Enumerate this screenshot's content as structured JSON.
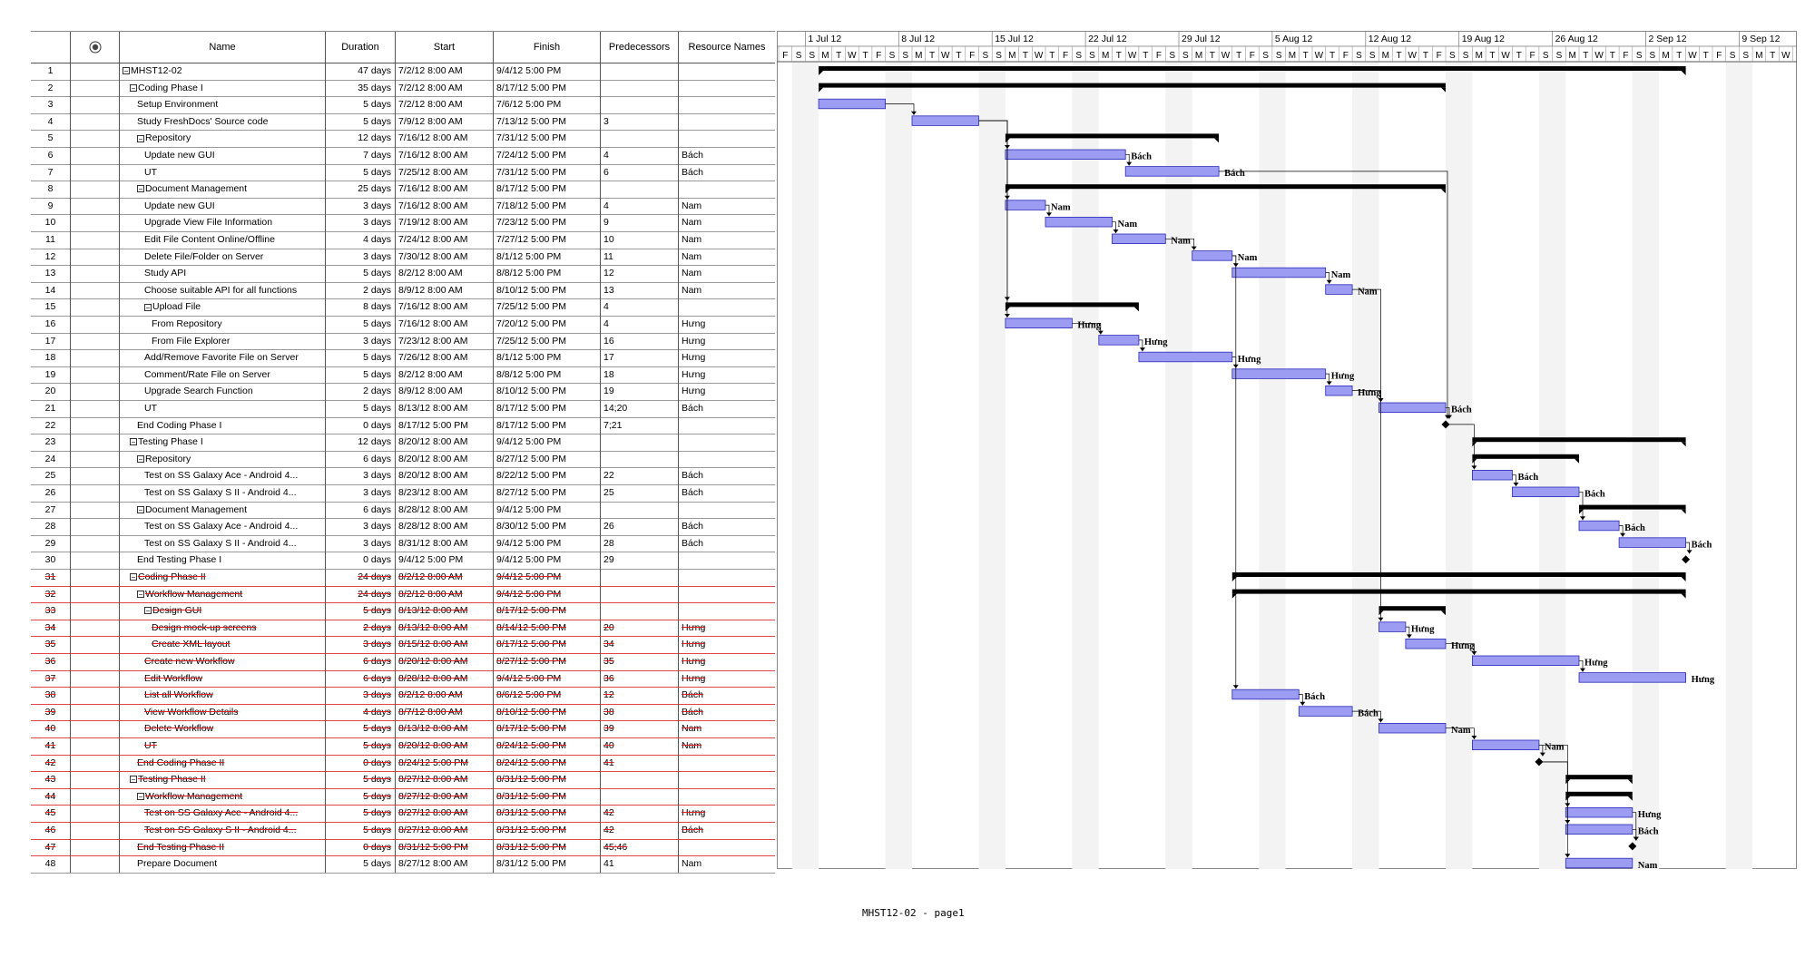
{
  "columns": {
    "info_icon": "info-icon",
    "name": "Name",
    "duration": "Duration",
    "start": "Start",
    "finish": "Finish",
    "predecessors": "Predecessors",
    "resource_names": "Resource Names"
  },
  "timeline": {
    "weeks": [
      "1 Jul 12",
      "8 Jul 12",
      "15 Jul 12",
      "22 Jul 12",
      "29 Jul 12",
      "5 Aug 12",
      "12 Aug 12",
      "19 Aug 12",
      "26 Aug 12",
      "2 Sep 12",
      "9 Sep 12"
    ],
    "lead_day_letters": [
      "F",
      "S"
    ],
    "day_letters": [
      "S",
      "M",
      "T",
      "W",
      "T",
      "F",
      "S"
    ]
  },
  "tasks": [
    {
      "id": "1",
      "name": "MHST12-02",
      "level": 0,
      "summary": true,
      "duration": "47  days",
      "start": "7/2/12 8:00 AM",
      "finish": "9/4/12 5:00 PM",
      "pred": "",
      "res": "",
      "struck": false
    },
    {
      "id": "2",
      "name": "Coding Phase I",
      "level": 1,
      "summary": true,
      "duration": "35  days",
      "start": "7/2/12 8:00 AM",
      "finish": "8/17/12 5:00 PM",
      "pred": "",
      "res": "",
      "struck": false
    },
    {
      "id": "3",
      "name": "Setup Environment",
      "level": 2,
      "summary": false,
      "duration": "5 days",
      "start": "7/2/12 8:00 AM",
      "finish": "7/6/12 5:00 PM",
      "pred": "",
      "res": "",
      "struck": false
    },
    {
      "id": "4",
      "name": "Study FreshDocs' Source code",
      "level": 2,
      "summary": false,
      "duration": "5 days",
      "start": "7/9/12 8:00 AM",
      "finish": "7/13/12 5:00 PM",
      "pred": "3",
      "res": "",
      "struck": false
    },
    {
      "id": "5",
      "name": "Repository",
      "level": 2,
      "summary": true,
      "duration": "12  days",
      "start": "7/16/12 8:00 AM",
      "finish": "7/31/12 5:00 PM",
      "pred": "",
      "res": "",
      "struck": false
    },
    {
      "id": "6",
      "name": "Update new GUI",
      "level": 3,
      "summary": false,
      "duration": "7 days",
      "start": "7/16/12 8:00 AM",
      "finish": "7/24/12 5:00 PM",
      "pred": "4",
      "res": "Bách",
      "struck": false
    },
    {
      "id": "7",
      "name": "UT",
      "level": 3,
      "summary": false,
      "duration": "5 days",
      "start": "7/25/12 8:00 AM",
      "finish": "7/31/12 5:00 PM",
      "pred": "6",
      "res": "Bách",
      "struck": false
    },
    {
      "id": "8",
      "name": "Document   Management",
      "level": 2,
      "summary": true,
      "duration": "25  days",
      "start": "7/16/12 8:00 AM",
      "finish": "8/17/12 5:00 PM",
      "pred": "",
      "res": "",
      "struck": false
    },
    {
      "id": "9",
      "name": "Update new GUI",
      "level": 3,
      "summary": false,
      "duration": "3 days",
      "start": "7/16/12 8:00 AM",
      "finish": "7/18/12 5:00 PM",
      "pred": "4",
      "res": "Nam",
      "struck": false
    },
    {
      "id": "10",
      "name": "Upgrade View File Information",
      "level": 3,
      "summary": false,
      "duration": "3 days",
      "start": "7/19/12 8:00 AM",
      "finish": "7/23/12 5:00 PM",
      "pred": "9",
      "res": "Nam",
      "struck": false
    },
    {
      "id": "11",
      "name": "Edit File Content Online/Offline",
      "level": 3,
      "summary": false,
      "duration": "4 days",
      "start": "7/24/12 8:00 AM",
      "finish": "7/27/12 5:00 PM",
      "pred": "10",
      "res": "Nam",
      "struck": false
    },
    {
      "id": "12",
      "name": "Delete File/Folder on Server",
      "level": 3,
      "summary": false,
      "duration": "3 days",
      "start": "7/30/12 8:00 AM",
      "finish": "8/1/12 5:00 PM",
      "pred": "11",
      "res": "Nam",
      "struck": false
    },
    {
      "id": "13",
      "name": "Study API",
      "level": 3,
      "summary": false,
      "duration": "5 days",
      "start": "8/2/12 8:00 AM",
      "finish": "8/8/12 5:00 PM",
      "pred": "12",
      "res": "Nam",
      "struck": false
    },
    {
      "id": "14",
      "name": "Choose suitable API for all functions",
      "level": 3,
      "summary": false,
      "duration": "2 days",
      "start": "8/9/12 8:00 AM",
      "finish": "8/10/12 5:00 PM",
      "pred": "13",
      "res": "Nam",
      "struck": false
    },
    {
      "id": "15",
      "name": "Upload File",
      "level": 3,
      "summary": true,
      "duration": "8 days",
      "start": "7/16/12 8:00 AM",
      "finish": "7/25/12 5:00 PM",
      "pred": "4",
      "res": "",
      "struck": false
    },
    {
      "id": "16",
      "name": "From Repository",
      "level": 4,
      "summary": false,
      "duration": "5 days",
      "start": "7/16/12 8:00 AM",
      "finish": "7/20/12 5:00 PM",
      "pred": "4",
      "res": "Hưng",
      "struck": false
    },
    {
      "id": "17",
      "name": "From File Explorer",
      "level": 4,
      "summary": false,
      "duration": "3 days",
      "start": "7/23/12 8:00 AM",
      "finish": "7/25/12 5:00 PM",
      "pred": "16",
      "res": "Hưng",
      "struck": false
    },
    {
      "id": "18",
      "name": "Add/Remove Favorite File on Server",
      "level": 3,
      "summary": false,
      "duration": "5 days",
      "start": "7/26/12 8:00 AM",
      "finish": "8/1/12 5:00 PM",
      "pred": "17",
      "res": "Hưng",
      "struck": false
    },
    {
      "id": "19",
      "name": "Comment/Rate File on Server",
      "level": 3,
      "summary": false,
      "duration": "5 days",
      "start": "8/2/12 8:00 AM",
      "finish": "8/8/12 5:00 PM",
      "pred": "18",
      "res": "Hưng",
      "struck": false
    },
    {
      "id": "20",
      "name": "Upgrade Search Function",
      "level": 3,
      "summary": false,
      "duration": "2 days",
      "start": "8/9/12 8:00 AM",
      "finish": "8/10/12 5:00 PM",
      "pred": "19",
      "res": "Hưng",
      "struck": false
    },
    {
      "id": "21",
      "name": "UT",
      "level": 3,
      "summary": false,
      "duration": "5 days",
      "start": "8/13/12 8:00 AM",
      "finish": "8/17/12 5:00 PM",
      "pred": "14;20",
      "res": "Bách",
      "struck": false
    },
    {
      "id": "22",
      "name": "End Coding Phase I",
      "level": 2,
      "summary": false,
      "milestone": true,
      "duration": "0 days",
      "start": "8/17/12 5:00 PM",
      "finish": "8/17/12 5:00 PM",
      "pred": "7;21",
      "res": "",
      "struck": false
    },
    {
      "id": "23",
      "name": "Testing Phase I",
      "level": 1,
      "summary": true,
      "duration": "12  days",
      "start": "8/20/12 8:00 AM",
      "finish": "9/4/12 5:00 PM",
      "pred": "",
      "res": "",
      "struck": false
    },
    {
      "id": "24",
      "name": "Repository",
      "level": 2,
      "summary": true,
      "duration": "6 days",
      "start": "8/20/12 8:00 AM",
      "finish": "8/27/12 5:00 PM",
      "pred": "",
      "res": "",
      "struck": false
    },
    {
      "id": "25",
      "name": "Test on SS Galaxy Ace - Android 4...",
      "level": 3,
      "summary": false,
      "duration": "3 days",
      "start": "8/20/12 8:00 AM",
      "finish": "8/22/12 5:00 PM",
      "pred": "22",
      "res": "Bách",
      "struck": false
    },
    {
      "id": "26",
      "name": "Test on SS Galaxy S II - Android 4...",
      "level": 3,
      "summary": false,
      "duration": "3 days",
      "start": "8/23/12 8:00 AM",
      "finish": "8/27/12 5:00 PM",
      "pred": "25",
      "res": "Bách",
      "struck": false
    },
    {
      "id": "27",
      "name": "Document   Management",
      "level": 2,
      "summary": true,
      "duration": "6 days",
      "start": "8/28/12 8:00 AM",
      "finish": "9/4/12 5:00 PM",
      "pred": "",
      "res": "",
      "struck": false
    },
    {
      "id": "28",
      "name": "Test on SS Galaxy Ace - Android 4...",
      "level": 3,
      "summary": false,
      "duration": "3 days",
      "start": "8/28/12 8:00 AM",
      "finish": "8/30/12 5:00 PM",
      "pred": "26",
      "res": "Bách",
      "struck": false
    },
    {
      "id": "29",
      "name": "Test on SS Galaxy S II - Android 4...",
      "level": 3,
      "summary": false,
      "duration": "3 days",
      "start": "8/31/12 8:00 AM",
      "finish": "9/4/12 5:00 PM",
      "pred": "28",
      "res": "Bách",
      "struck": false
    },
    {
      "id": "30",
      "name": "End Testing Phase I",
      "level": 2,
      "summary": false,
      "milestone": true,
      "duration": "0 days",
      "start": "9/4/12 5:00 PM",
      "finish": "9/4/12 5:00 PM",
      "pred": "29",
      "res": "",
      "struck": false
    },
    {
      "id": "31",
      "name": "Coding  Phase  II",
      "level": 1,
      "summary": true,
      "duration": "24  days",
      "start": "8/2/12 8:00 AM",
      "finish": "9/4/12 5:00 PM",
      "pred": "",
      "res": "",
      "struck": true
    },
    {
      "id": "32",
      "name": "Workflow   Management",
      "level": 2,
      "summary": true,
      "duration": "24  days",
      "start": "8/2/12 8:00 AM",
      "finish": "9/4/12 5:00 PM",
      "pred": "",
      "res": "",
      "struck": true
    },
    {
      "id": "33",
      "name": "Design GUI",
      "level": 3,
      "summary": true,
      "duration": "5 days",
      "start": "8/13/12 8:00 AM",
      "finish": "8/17/12 5:00 PM",
      "pred": "",
      "res": "",
      "struck": true
    },
    {
      "id": "34",
      "name": "Design  mock-up screens",
      "level": 4,
      "summary": false,
      "duration": "2 days",
      "start": "8/13/12 8:00 AM",
      "finish": "8/14/12 5:00 PM",
      "pred": "20",
      "res": "Hưng",
      "struck": true
    },
    {
      "id": "35",
      "name": "Create XML layout",
      "level": 4,
      "summary": false,
      "duration": "3 days",
      "start": "8/15/12 8:00 AM",
      "finish": "8/17/12 5:00 PM",
      "pred": "34",
      "res": "Hưng",
      "struck": true
    },
    {
      "id": "36",
      "name": "Create  new  Workflow",
      "level": 3,
      "summary": false,
      "duration": "6 days",
      "start": "8/20/12 8:00 AM",
      "finish": "8/27/12 5:00 PM",
      "pred": "35",
      "res": "Hưng",
      "struck": true
    },
    {
      "id": "37",
      "name": "Edit  Workflow",
      "level": 3,
      "summary": false,
      "duration": "6 days",
      "start": "8/28/12 8:00 AM",
      "finish": "9/4/12 5:00 PM",
      "pred": "36",
      "res": "Hưng",
      "struck": true
    },
    {
      "id": "38",
      "name": "List  all  Workflow",
      "level": 3,
      "summary": false,
      "duration": "3 days",
      "start": "8/2/12 8:00 AM",
      "finish": "8/6/12 5:00 PM",
      "pred": "12",
      "res": "Bách",
      "struck": true
    },
    {
      "id": "39",
      "name": "View  Workflow  Details",
      "level": 3,
      "summary": false,
      "duration": "4 days",
      "start": "8/7/12 8:00 AM",
      "finish": "8/10/12 5:00 PM",
      "pred": "38",
      "res": "Bách",
      "struck": true
    },
    {
      "id": "40",
      "name": "Delete  Workflow",
      "level": 3,
      "summary": false,
      "duration": "5 days",
      "start": "8/13/12 8:00 AM",
      "finish": "8/17/12 5:00 PM",
      "pred": "39",
      "res": "Nam",
      "struck": true
    },
    {
      "id": "41",
      "name": "UT",
      "level": 3,
      "summary": false,
      "duration": "5 days",
      "start": "8/20/12 8:00 AM",
      "finish": "8/24/12 5:00 PM",
      "pred": "40",
      "res": "Nam",
      "struck": true
    },
    {
      "id": "42",
      "name": "End Coding Phase II",
      "level": 2,
      "summary": false,
      "milestone": true,
      "duration": "0 days",
      "start": "8/24/12 5:00 PM",
      "finish": "8/24/12 5:00 PM",
      "pred": "41",
      "res": "",
      "struck": true
    },
    {
      "id": "43",
      "name": "Testing Phase II",
      "level": 1,
      "summary": true,
      "duration": "5 days",
      "start": "8/27/12 8:00 AM",
      "finish": "8/31/12 5:00 PM",
      "pred": "",
      "res": "",
      "struck": true
    },
    {
      "id": "44",
      "name": "Workflow   Management",
      "level": 2,
      "summary": true,
      "duration": "5 days",
      "start": "8/27/12 8:00 AM",
      "finish": "8/31/12 5:00 PM",
      "pred": "",
      "res": "",
      "struck": true
    },
    {
      "id": "45",
      "name": "Test on SS Galaxy Ace - Android 4...",
      "level": 3,
      "summary": false,
      "duration": "5 days",
      "start": "8/27/12 8:00 AM",
      "finish": "8/31/12 5:00 PM",
      "pred": "42",
      "res": "Hưng",
      "struck": true
    },
    {
      "id": "46",
      "name": "Test on SS Galaxy S II - Android 4...",
      "level": 3,
      "summary": false,
      "duration": "5 days",
      "start": "8/27/12 8:00 AM",
      "finish": "8/31/12 5:00 PM",
      "pred": "42",
      "res": "Bách",
      "struck": true
    },
    {
      "id": "47",
      "name": "End Testing Phase II",
      "level": 2,
      "summary": false,
      "milestone": true,
      "duration": "0 days",
      "start": "8/31/12 5:00 PM",
      "finish": "8/31/12 5:00 PM",
      "pred": "45;46",
      "res": "",
      "struck": true
    },
    {
      "id": "48",
      "name": "Prepare Document",
      "level": 2,
      "summary": false,
      "duration": "5 days",
      "start": "8/27/12 8:00 AM",
      "finish": "8/31/12 5:00 PM",
      "pred": "41",
      "res": "Nam",
      "struck": false
    }
  ],
  "colors": {
    "task_bar": "#9c9cf2",
    "task_bar_border": "#2a2ab8",
    "summary_bar": "#000000",
    "weekend_shade": "#f3f3f3",
    "strike": "#e02020",
    "link": "#000000"
  },
  "footer": "MHST12-02  -  page1"
}
